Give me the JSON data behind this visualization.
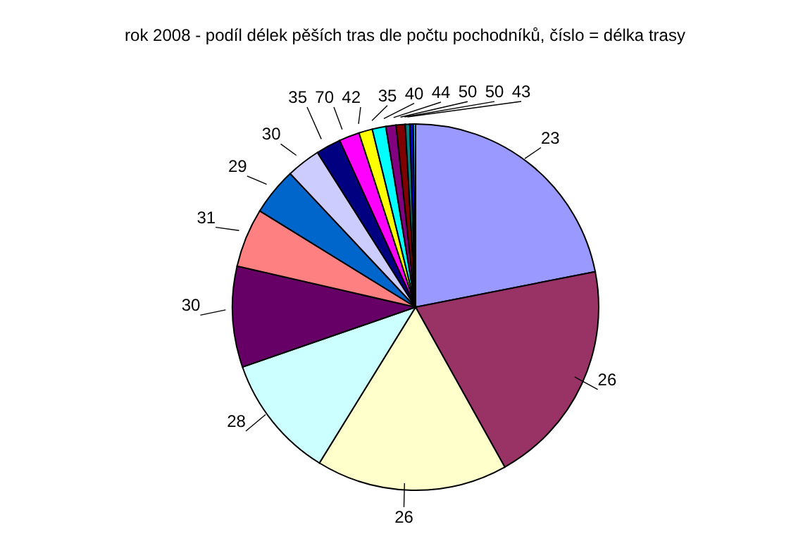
{
  "chart_data": {
    "type": "pie",
    "title": "rok 2008 - podíl délek pěších tras dle počtu pochodníků, číslo = délka trasy",
    "categories": [
      "23",
      "26",
      "26",
      "28",
      "30",
      "31",
      "29",
      "30",
      "35",
      "70",
      "42",
      "35",
      "40",
      "44",
      "50",
      "50",
      "43"
    ],
    "values": [
      21.9,
      20,
      16.9,
      10.9,
      8.9,
      5.2,
      4.2,
      3,
      2.2,
      1.8,
      1.2,
      1.2,
      0.9,
      0.8,
      0.4,
      0.3,
      0.2
    ],
    "colors": [
      "#9999ff",
      "#993366",
      "#ffffcc",
      "#ccffff",
      "#660066",
      "#ff8080",
      "#0066cc",
      "#ccccff",
      "#000080",
      "#ff00ff",
      "#ffff00",
      "#00ffff",
      "#800080",
      "#800000",
      "#008080",
      "#0000ff",
      "#33ccff"
    ]
  }
}
